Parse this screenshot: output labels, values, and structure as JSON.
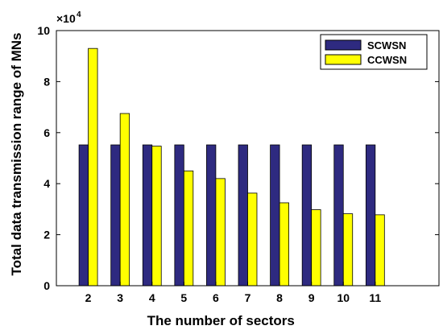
{
  "chart_data": {
    "type": "bar",
    "categories": [
      "2",
      "3",
      "4",
      "5",
      "6",
      "7",
      "8",
      "9",
      "10",
      "11"
    ],
    "x_range": [
      1,
      13
    ],
    "series": [
      {
        "name": "SCWSN",
        "color": "#2e2a80",
        "values": [
          55200,
          55200,
          55200,
          55200,
          55200,
          55200,
          55200,
          55200,
          55200,
          55200
        ]
      },
      {
        "name": "CCWSN",
        "color": "#ffff00",
        "values": [
          93000,
          67500,
          54700,
          45000,
          42000,
          36300,
          32500,
          29800,
          28200,
          27800
        ]
      }
    ],
    "xlabel": "The number of sectors",
    "ylabel": "Total data transmission range of MNs",
    "ylim": [
      0,
      100000
    ],
    "yticks": [
      0,
      2,
      4,
      6,
      8,
      10
    ],
    "y_multiplier": "×10",
    "y_exponent": "4",
    "grid": false,
    "legend_position": "top-right"
  }
}
